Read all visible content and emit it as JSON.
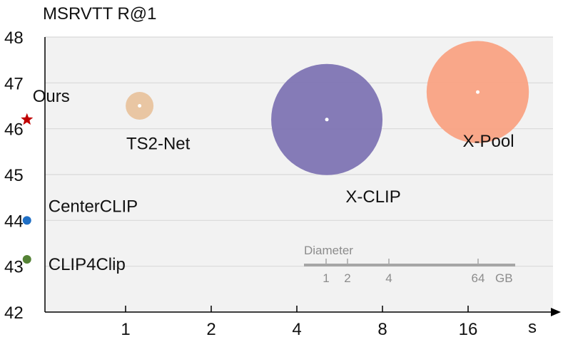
{
  "chart_data": {
    "type": "scatter",
    "title": "MSRVTT R@1",
    "xlabel": "s",
    "ylabel": "MSRVTT R@1",
    "x_scale": "log2",
    "x_ticks": [
      1,
      2,
      4,
      8,
      16
    ],
    "x_tick_labels": [
      "1",
      "2",
      "4",
      "8",
      "16"
    ],
    "y_ticks": [
      42,
      43,
      44,
      45,
      46,
      47,
      48
    ],
    "y_tick_labels": [
      "42",
      "43",
      "44",
      "45",
      "46",
      "47",
      "48"
    ],
    "ylim": [
      42,
      48
    ],
    "grid": true,
    "points": [
      {
        "label": "Ours",
        "x": 0.45,
        "y": 46.2,
        "size_gb": 0,
        "marker": "star",
        "color": "#c00000"
      },
      {
        "label": "CenterCLIP",
        "x": 0.45,
        "y": 44.0,
        "size_gb": 0,
        "marker": "dot",
        "color": "#1f6fc5"
      },
      {
        "label": "CLIP4Clip",
        "x": 0.45,
        "y": 43.15,
        "size_gb": 0,
        "marker": "dot",
        "color": "#548235"
      },
      {
        "label": "TS2-Net",
        "x": 1.12,
        "y": 46.5,
        "size_gb": 4,
        "marker": "bubble",
        "color": "#e8c39e"
      },
      {
        "label": "X-CLIP",
        "x": 5.1,
        "y": 46.2,
        "size_gb": 64,
        "marker": "bubble",
        "color": "#7e74b3"
      },
      {
        "label": "X-Pool",
        "x": 17.3,
        "y": 46.8,
        "size_gb": 54,
        "marker": "bubble",
        "color": "#f9a283"
      }
    ],
    "size_legend": {
      "title": "Diameter",
      "values": [
        1,
        2,
        4,
        64
      ],
      "value_labels": [
        "1",
        "2",
        "4",
        "64"
      ],
      "unit": "GB"
    },
    "colors": {
      "plot_bg": "#f2f2f2",
      "grid": "#d9d9d9",
      "axis": "#000000",
      "legend": "#a6a6a6"
    }
  }
}
